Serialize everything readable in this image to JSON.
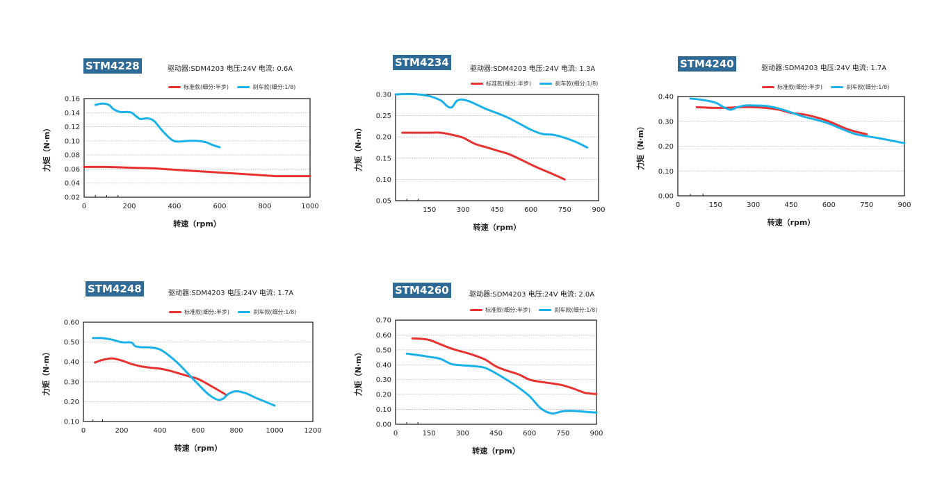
{
  "labels": {
    "xlabel": "转速（rpm）",
    "ylabel": "力矩（N·m）",
    "legend_std": "标准款(细分:半步)",
    "legend_brake": "刹车款(细分:1/8)"
  },
  "colors": {
    "std": "#e8322f",
    "brake": "#1ab0e8",
    "title_bg": "#2e6a96"
  },
  "chart_data": [
    {
      "type": "line",
      "title": "STM4228",
      "subtitle": "驱动器:SDM4203   电压:24V   电流: 0.6A",
      "xlabel": "转速（rpm）",
      "ylabel": "力矩（N·m）",
      "xlim": [
        0,
        1000
      ],
      "ylim": [
        0.02,
        0.16
      ],
      "xticks": [
        0,
        200,
        400,
        600,
        800,
        1000
      ],
      "yticks": [
        0.02,
        0.04,
        0.06,
        0.08,
        0.1,
        0.12,
        0.14,
        0.16
      ],
      "ytick_labels": [
        "0.02",
        "0.04",
        "0.06",
        "0.08",
        "0.10",
        "0.12",
        "0.14",
        "0.16"
      ],
      "xminor": [
        50,
        100,
        150
      ],
      "series": [
        {
          "name": "标准款(细分:半步)",
          "color": "#e8322f",
          "x": [
            0,
            100,
            200,
            300,
            400,
            500,
            600,
            700,
            800,
            850,
            900,
            1000
          ],
          "y": [
            0.063,
            0.063,
            0.062,
            0.061,
            0.059,
            0.057,
            0.055,
            0.053,
            0.051,
            0.05,
            0.05,
            0.05
          ]
        },
        {
          "name": "刹车款(细分:1/8)",
          "color": "#1ab0e8",
          "x": [
            50,
            80,
            110,
            130,
            160,
            190,
            210,
            230,
            250,
            280,
            310,
            350,
            390,
            420,
            460,
            500,
            540,
            570,
            600
          ],
          "y": [
            0.151,
            0.153,
            0.151,
            0.145,
            0.141,
            0.141,
            0.14,
            0.135,
            0.131,
            0.132,
            0.128,
            0.113,
            0.101,
            0.099,
            0.1,
            0.1,
            0.098,
            0.094,
            0.091
          ]
        }
      ]
    },
    {
      "type": "line",
      "title": "STM4234",
      "subtitle": "驱动器:SDM4203   电压:24V   电流: 1.3A",
      "xlabel": "转速（rpm）",
      "ylabel": "力矩（N·m）",
      "xlim": [
        0,
        900
      ],
      "ylim": [
        0.05,
        0.3
      ],
      "xticks": [
        150,
        300,
        450,
        600,
        750,
        900
      ],
      "yticks": [
        0.05,
        0.1,
        0.15,
        0.2,
        0.25,
        0.3
      ],
      "ytick_labels": [
        "0.05",
        "0.10",
        "0.15",
        "0.20",
        "0.25",
        "0.30"
      ],
      "xminor": [
        50,
        100
      ],
      "series": [
        {
          "name": "标准款(细分:半步)",
          "color": "#e8322f",
          "x": [
            30,
            100,
            150,
            200,
            250,
            300,
            350,
            400,
            450,
            500,
            550,
            600,
            650,
            700,
            750
          ],
          "y": [
            0.21,
            0.21,
            0.21,
            0.21,
            0.205,
            0.198,
            0.184,
            0.176,
            0.168,
            0.16,
            0.148,
            0.135,
            0.123,
            0.112,
            0.1
          ]
        },
        {
          "name": "刹车款(细分:1/8)",
          "color": "#1ab0e8",
          "x": [
            0,
            50,
            100,
            150,
            200,
            230,
            250,
            270,
            290,
            320,
            360,
            400,
            450,
            500,
            550,
            600,
            650,
            700,
            750,
            800,
            850
          ],
          "y": [
            0.3,
            0.301,
            0.3,
            0.296,
            0.286,
            0.272,
            0.27,
            0.284,
            0.288,
            0.285,
            0.276,
            0.266,
            0.256,
            0.245,
            0.231,
            0.217,
            0.207,
            0.205,
            0.198,
            0.188,
            0.175
          ]
        }
      ]
    },
    {
      "type": "line",
      "title": "STM4240",
      "subtitle": "驱动器:SDM4203   电压:24V   电流: 1.7A",
      "xlabel": "转速（rpm）",
      "ylabel": "力矩（N·m）",
      "xlim": [
        0,
        900
      ],
      "ylim": [
        0,
        0.4
      ],
      "xticks": [
        0,
        150,
        300,
        450,
        600,
        750,
        900
      ],
      "yticks": [
        0,
        0.1,
        0.2,
        0.3,
        0.4
      ],
      "ytick_labels": [
        "0.00",
        "0.10",
        "0.20",
        "0.30",
        "0.40"
      ],
      "xminor": [
        50,
        100
      ],
      "series": [
        {
          "name": "标准款(细分:半步)",
          "color": "#e8322f",
          "x": [
            75,
            100,
            150,
            200,
            250,
            300,
            350,
            400,
            450,
            500,
            550,
            600,
            650,
            700,
            750
          ],
          "y": [
            0.357,
            0.356,
            0.354,
            0.355,
            0.357,
            0.357,
            0.354,
            0.347,
            0.334,
            0.328,
            0.316,
            0.3,
            0.278,
            0.26,
            0.248
          ]
        },
        {
          "name": "刹车款(细分:1/8)",
          "color": "#1ab0e8",
          "x": [
            50,
            100,
            150,
            180,
            205,
            220,
            240,
            270,
            300,
            350,
            400,
            450,
            500,
            550,
            600,
            650,
            700,
            750,
            800,
            850,
            900
          ],
          "y": [
            0.392,
            0.386,
            0.375,
            0.358,
            0.347,
            0.35,
            0.358,
            0.364,
            0.364,
            0.362,
            0.352,
            0.336,
            0.319,
            0.306,
            0.291,
            0.27,
            0.25,
            0.24,
            0.232,
            0.222,
            0.212
          ]
        }
      ]
    },
    {
      "type": "line",
      "title": "STM4248",
      "subtitle": "驱动器:SDM4203   电压:24V   电流: 1.7A",
      "xlabel": "转速（rpm）",
      "ylabel": "力矩（N·m）",
      "xlim": [
        0,
        1200
      ],
      "ylim": [
        0.1,
        0.6
      ],
      "xticks": [
        0,
        200,
        400,
        600,
        800,
        1000,
        1200
      ],
      "yticks": [
        0.1,
        0.2,
        0.3,
        0.4,
        0.5,
        0.6
      ],
      "ytick_labels": [
        "0.10",
        "0.20",
        "0.30",
        "0.40",
        "0.50",
        "0.60"
      ],
      "xminor": [
        50,
        100
      ],
      "series": [
        {
          "name": "标准款(细分:半步)",
          "color": "#e8322f",
          "x": [
            60,
            100,
            150,
            200,
            250,
            300,
            350,
            400,
            450,
            500,
            550,
            600,
            650,
            700,
            750
          ],
          "y": [
            0.397,
            0.41,
            0.418,
            0.407,
            0.39,
            0.378,
            0.371,
            0.366,
            0.356,
            0.342,
            0.328,
            0.314,
            0.288,
            0.261,
            0.232
          ]
        },
        {
          "name": "刹车款(细分:1/8)",
          "color": "#1ab0e8",
          "x": [
            50,
            100,
            150,
            200,
            250,
            270,
            300,
            350,
            400,
            450,
            500,
            550,
            600,
            650,
            700,
            730,
            760,
            800,
            850,
            900,
            950,
            1000
          ],
          "y": [
            0.52,
            0.52,
            0.512,
            0.499,
            0.498,
            0.48,
            0.474,
            0.473,
            0.463,
            0.43,
            0.388,
            0.338,
            0.288,
            0.24,
            0.21,
            0.215,
            0.24,
            0.252,
            0.242,
            0.22,
            0.2,
            0.18
          ]
        }
      ]
    },
    {
      "type": "line",
      "title": "STM4260",
      "subtitle": "驱动器:SDM4203   电压:24V   电流: 2.0A",
      "xlabel": "转速（rpm）",
      "ylabel": "力矩（N·m）",
      "xlim": [
        0,
        900
      ],
      "ylim": [
        0,
        0.7
      ],
      "xticks": [
        0,
        150,
        300,
        450,
        600,
        750,
        900
      ],
      "yticks": [
        0,
        0.1,
        0.2,
        0.3,
        0.4,
        0.5,
        0.6,
        0.7
      ],
      "ytick_labels": [
        "0.00",
        "0.10",
        "0.20",
        "0.30",
        "0.40",
        "0.50",
        "0.60",
        "0.70"
      ],
      "xminor": [
        50,
        100
      ],
      "series": [
        {
          "name": "标准款(细分:半步)",
          "color": "#e8322f",
          "x": [
            75,
            100,
            150,
            200,
            250,
            300,
            350,
            400,
            450,
            500,
            550,
            600,
            650,
            700,
            750,
            800,
            850,
            900
          ],
          "y": [
            0.577,
            0.576,
            0.567,
            0.538,
            0.509,
            0.487,
            0.465,
            0.436,
            0.389,
            0.36,
            0.336,
            0.3,
            0.285,
            0.275,
            0.262,
            0.238,
            0.211,
            0.203
          ]
        },
        {
          "name": "刹车款(细分:1/8)",
          "color": "#1ab0e8",
          "x": [
            50,
            100,
            150,
            200,
            250,
            300,
            350,
            400,
            450,
            500,
            550,
            600,
            650,
            700,
            750,
            800,
            850,
            900
          ],
          "y": [
            0.475,
            0.465,
            0.453,
            0.44,
            0.405,
            0.396,
            0.391,
            0.38,
            0.342,
            0.297,
            0.248,
            0.189,
            0.108,
            0.073,
            0.088,
            0.09,
            0.084,
            0.078
          ]
        }
      ]
    }
  ]
}
